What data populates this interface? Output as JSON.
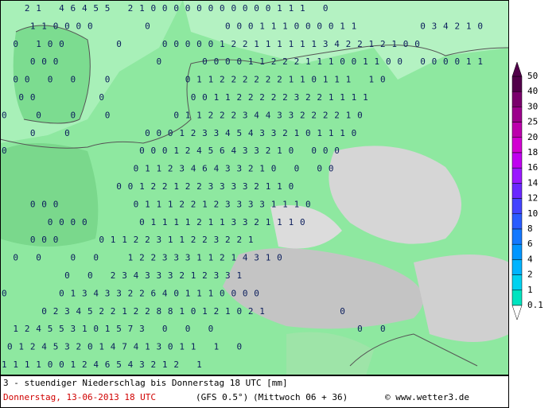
{
  "map": {
    "rows": [
      "  21 46455 2100000000000111 0              ",
      "  110000    0      000111000011     034210 ",
      " 0 100    0   00000122111111342212100      ",
      "  000        0   000011222111001100 000011 ",
      " 00 0 0  0      011222222110111 10         ",
      " 00     0       0011222223221111           ",
      "0  0  0  0     01122234433222210           ",
      "  0  0      0001233454332101110            ",
      "0           00012456433210 000             ",
      "           0112346433210 0 00              ",
      "          0012212233332110                 ",
      "  000      0111221233331110                ",
      "    0000    011112113321110                ",
      "  000   01122311223221                     ",
      " 0 0  0 0  12233311214310                  ",
      "     0 0 234333212331                      ",
      "0    013433226401110000                    ",
      "   02345221228810121021      0             ",
      " 124553101573 0 0 0            0 0         ",
      "01245320147413011 1 0                      ",
      "1111001246543212 1                         "
    ]
  },
  "legend": {
    "levels": [
      {
        "value": 50,
        "color": "#52004a"
      },
      {
        "value": 40,
        "color": "#7a006c"
      },
      {
        "value": 30,
        "color": "#9c008c"
      },
      {
        "value": 25,
        "color": "#bc00ac"
      },
      {
        "value": 20,
        "color": "#d200d2"
      },
      {
        "value": 18,
        "color": "#c000f0"
      },
      {
        "value": 16,
        "color": "#9a18ff"
      },
      {
        "value": 14,
        "color": "#6a28ff"
      },
      {
        "value": 12,
        "color": "#4444ff"
      },
      {
        "value": 10,
        "color": "#2a5cff"
      },
      {
        "value": 8,
        "color": "#1478ff"
      },
      {
        "value": 6,
        "color": "#0096ff"
      },
      {
        "value": 4,
        "color": "#00b4ff"
      },
      {
        "value": 2,
        "color": "#00d2f0"
      },
      {
        "value": 1,
        "color": "#00e4c0"
      },
      {
        "value": 0.1,
        "color": "#40e090"
      }
    ]
  },
  "caption": {
    "title": "3 - stuendiger Niederschlag bis Donnerstag 18 UTC [mm]",
    "date": "Donnerstag, 13-06-2013  18 UTC",
    "model": "(GFS 0.5°)",
    "run": "(Mittwoch 06 + 36)",
    "copyright": "© www.wetter3.de"
  }
}
